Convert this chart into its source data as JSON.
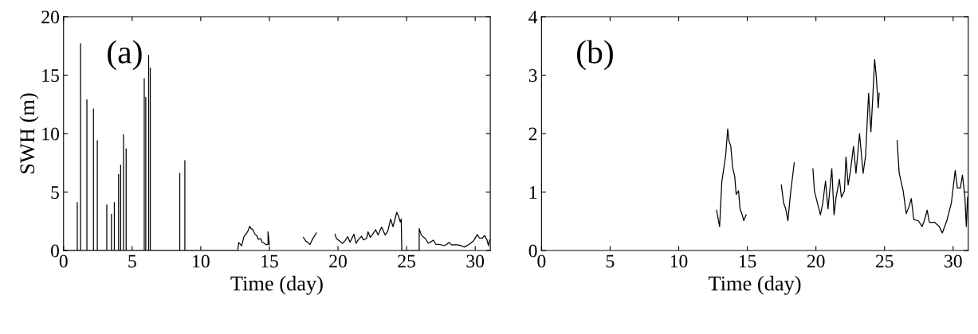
{
  "chart_data": [
    {
      "type": "line",
      "ylabel": "SWH (m)",
      "xlabel": "Time (day)",
      "annotations": [
        "(a)"
      ],
      "xlim": [
        0,
        31.1
      ],
      "xticks": [
        0,
        5,
        10,
        15,
        20,
        25,
        30
      ],
      "ylim": [
        0,
        20
      ],
      "yticks": [
        0,
        5,
        10,
        15,
        20
      ],
      "grid": false,
      "legend": false,
      "marker": "none",
      "line_style": "solid",
      "series": [
        {
          "color": "#000000",
          "x": [
            0,
            1.0,
            1.0,
            1.0,
            1.24,
            1.24,
            1.24,
            1.7,
            1.7,
            1.7,
            2.18,
            2.18,
            2.18,
            2.46,
            2.46,
            2.46,
            3.15,
            3.15,
            3.15,
            3.49,
            3.49,
            3.49,
            3.7,
            3.7,
            3.7,
            4.01,
            4.01,
            4.01,
            4.16,
            4.16,
            4.16,
            4.37,
            4.37,
            4.37,
            4.56,
            4.56,
            4.56,
            5.88,
            5.88,
            5.88,
            5.99,
            5.99,
            5.99,
            6.2,
            6.2,
            6.2,
            6.32,
            6.32,
            6.32,
            8.47,
            8.47,
            8.47,
            8.84,
            8.84,
            8.84,
            12.7,
            12.76,
            12.98,
            13.14,
            13.42,
            13.57,
            13.66,
            13.8,
            13.93,
            14.08,
            14.19,
            14.36,
            14.47,
            14.63,
            14.74,
            14.9,
            14.9,
            15.0,
            15.1,
            17.48,
            17.65,
            17.8,
            17.96,
            18.14,
            18.42,
            18.5,
            19.78,
            19.89,
            20.11,
            20.33,
            20.5,
            20.7,
            20.88,
            21.16,
            21.32,
            21.47,
            21.71,
            21.86,
            22.08,
            22.19,
            22.35,
            22.52,
            22.74,
            22.92,
            23.18,
            23.44,
            23.62,
            23.84,
            24.01,
            24.17,
            24.28,
            24.41,
            24.54,
            24.61,
            24.65,
            25.92,
            25.92,
            26.07,
            26.36,
            26.58,
            26.8,
            26.95,
            27.13,
            27.46,
            27.74,
            27.9,
            28.11,
            28.27,
            28.66,
            28.99,
            29.21,
            29.54,
            29.87,
            30.15,
            30.31,
            30.53,
            30.68,
            30.86,
            30.96,
            31.05
          ],
          "values": [
            0,
            0,
            4.1,
            0,
            0,
            17.7,
            0,
            0,
            12.9,
            0,
            0,
            12.1,
            0,
            0,
            9.4,
            0,
            0,
            3.9,
            0,
            0,
            3.1,
            0,
            0,
            4.1,
            0,
            0,
            6.5,
            0,
            0,
            7.3,
            0,
            0,
            9.9,
            0,
            0,
            8.7,
            0,
            0,
            14.7,
            0,
            0,
            13.1,
            0,
            0,
            16.7,
            0,
            0,
            15.6,
            0,
            0,
            6.6,
            0,
            0,
            7.7,
            0,
            0,
            0.69,
            0.41,
            1.17,
            1.62,
            2.08,
            1.88,
            1.78,
            1.42,
            1.27,
            0.96,
            1.02,
            0.71,
            0.61,
            0.51,
            0.5,
            1.6,
            0.5,
            null,
            1.12,
            0.81,
            0.71,
            0.51,
            0.96,
            1.5,
            null,
            1.4,
            1.02,
            0.81,
            0.61,
            0.81,
            1.19,
            0.71,
            1.4,
            0.61,
            0.91,
            1.22,
            0.91,
            1.02,
            1.6,
            1.12,
            1.37,
            1.78,
            1.32,
            2.0,
            1.32,
            1.62,
            2.69,
            2.03,
            2.74,
            3.27,
            2.94,
            2.44,
            2.69,
            0,
            0,
            1.88,
            1.32,
            1.02,
            0.63,
            0.76,
            0.89,
            0.53,
            0.51,
            0.41,
            0.51,
            0.69,
            0.48,
            0.48,
            0.41,
            0.3,
            0.51,
            0.81,
            1.37,
            1.07,
            1.07,
            1.29,
            0.91,
            0.41,
            0.91
          ]
        }
      ]
    },
    {
      "type": "line",
      "xlabel": "Time (day)",
      "annotations": [
        "(b)"
      ],
      "xlim": [
        0,
        31.1
      ],
      "xticks": [
        0,
        5,
        10,
        15,
        20,
        25,
        30
      ],
      "ylim": [
        0,
        4
      ],
      "yticks": [
        0,
        1,
        2,
        3,
        4
      ],
      "grid": false,
      "legend": false,
      "marker": "none",
      "line_style": "solid",
      "series": [
        {
          "color": "#000000",
          "x": [
            12.76,
            12.98,
            13.14,
            13.42,
            13.57,
            13.66,
            13.8,
            13.93,
            14.08,
            14.19,
            14.36,
            14.47,
            14.63,
            14.74,
            14.91,
            15.2,
            17.48,
            17.65,
            17.8,
            17.96,
            18.14,
            18.42,
            18.5,
            19.78,
            19.89,
            20.11,
            20.33,
            20.5,
            20.7,
            20.88,
            21.16,
            21.32,
            21.47,
            21.71,
            21.86,
            22.08,
            22.19,
            22.35,
            22.52,
            22.74,
            22.92,
            23.18,
            23.44,
            23.62,
            23.84,
            24.01,
            24.17,
            24.28,
            24.41,
            24.54,
            24.61,
            25.0,
            25.92,
            26.07,
            26.36,
            26.58,
            26.8,
            26.95,
            27.13,
            27.46,
            27.74,
            27.9,
            28.11,
            28.27,
            28.66,
            28.99,
            29.21,
            29.54,
            29.87,
            30.15,
            30.31,
            30.53,
            30.68,
            30.86,
            30.96,
            31.05
          ],
          "values": [
            0.69,
            0.41,
            1.17,
            1.62,
            2.08,
            1.88,
            1.78,
            1.42,
            1.27,
            0.96,
            1.02,
            0.71,
            0.61,
            0.51,
            0.61,
            null,
            1.12,
            0.81,
            0.71,
            0.51,
            0.96,
            1.5,
            null,
            1.4,
            1.02,
            0.81,
            0.61,
            0.81,
            1.19,
            0.71,
            1.4,
            0.61,
            0.91,
            1.22,
            0.91,
            1.02,
            1.6,
            1.12,
            1.37,
            1.78,
            1.32,
            2.0,
            1.32,
            1.62,
            2.69,
            2.03,
            2.74,
            3.27,
            2.94,
            2.44,
            2.69,
            null,
            1.88,
            1.32,
            1.02,
            0.63,
            0.76,
            0.89,
            0.53,
            0.51,
            0.41,
            0.51,
            0.69,
            0.48,
            0.48,
            0.41,
            0.3,
            0.51,
            0.81,
            1.37,
            1.07,
            1.07,
            1.29,
            0.91,
            0.41,
            0.91
          ]
        }
      ]
    }
  ]
}
